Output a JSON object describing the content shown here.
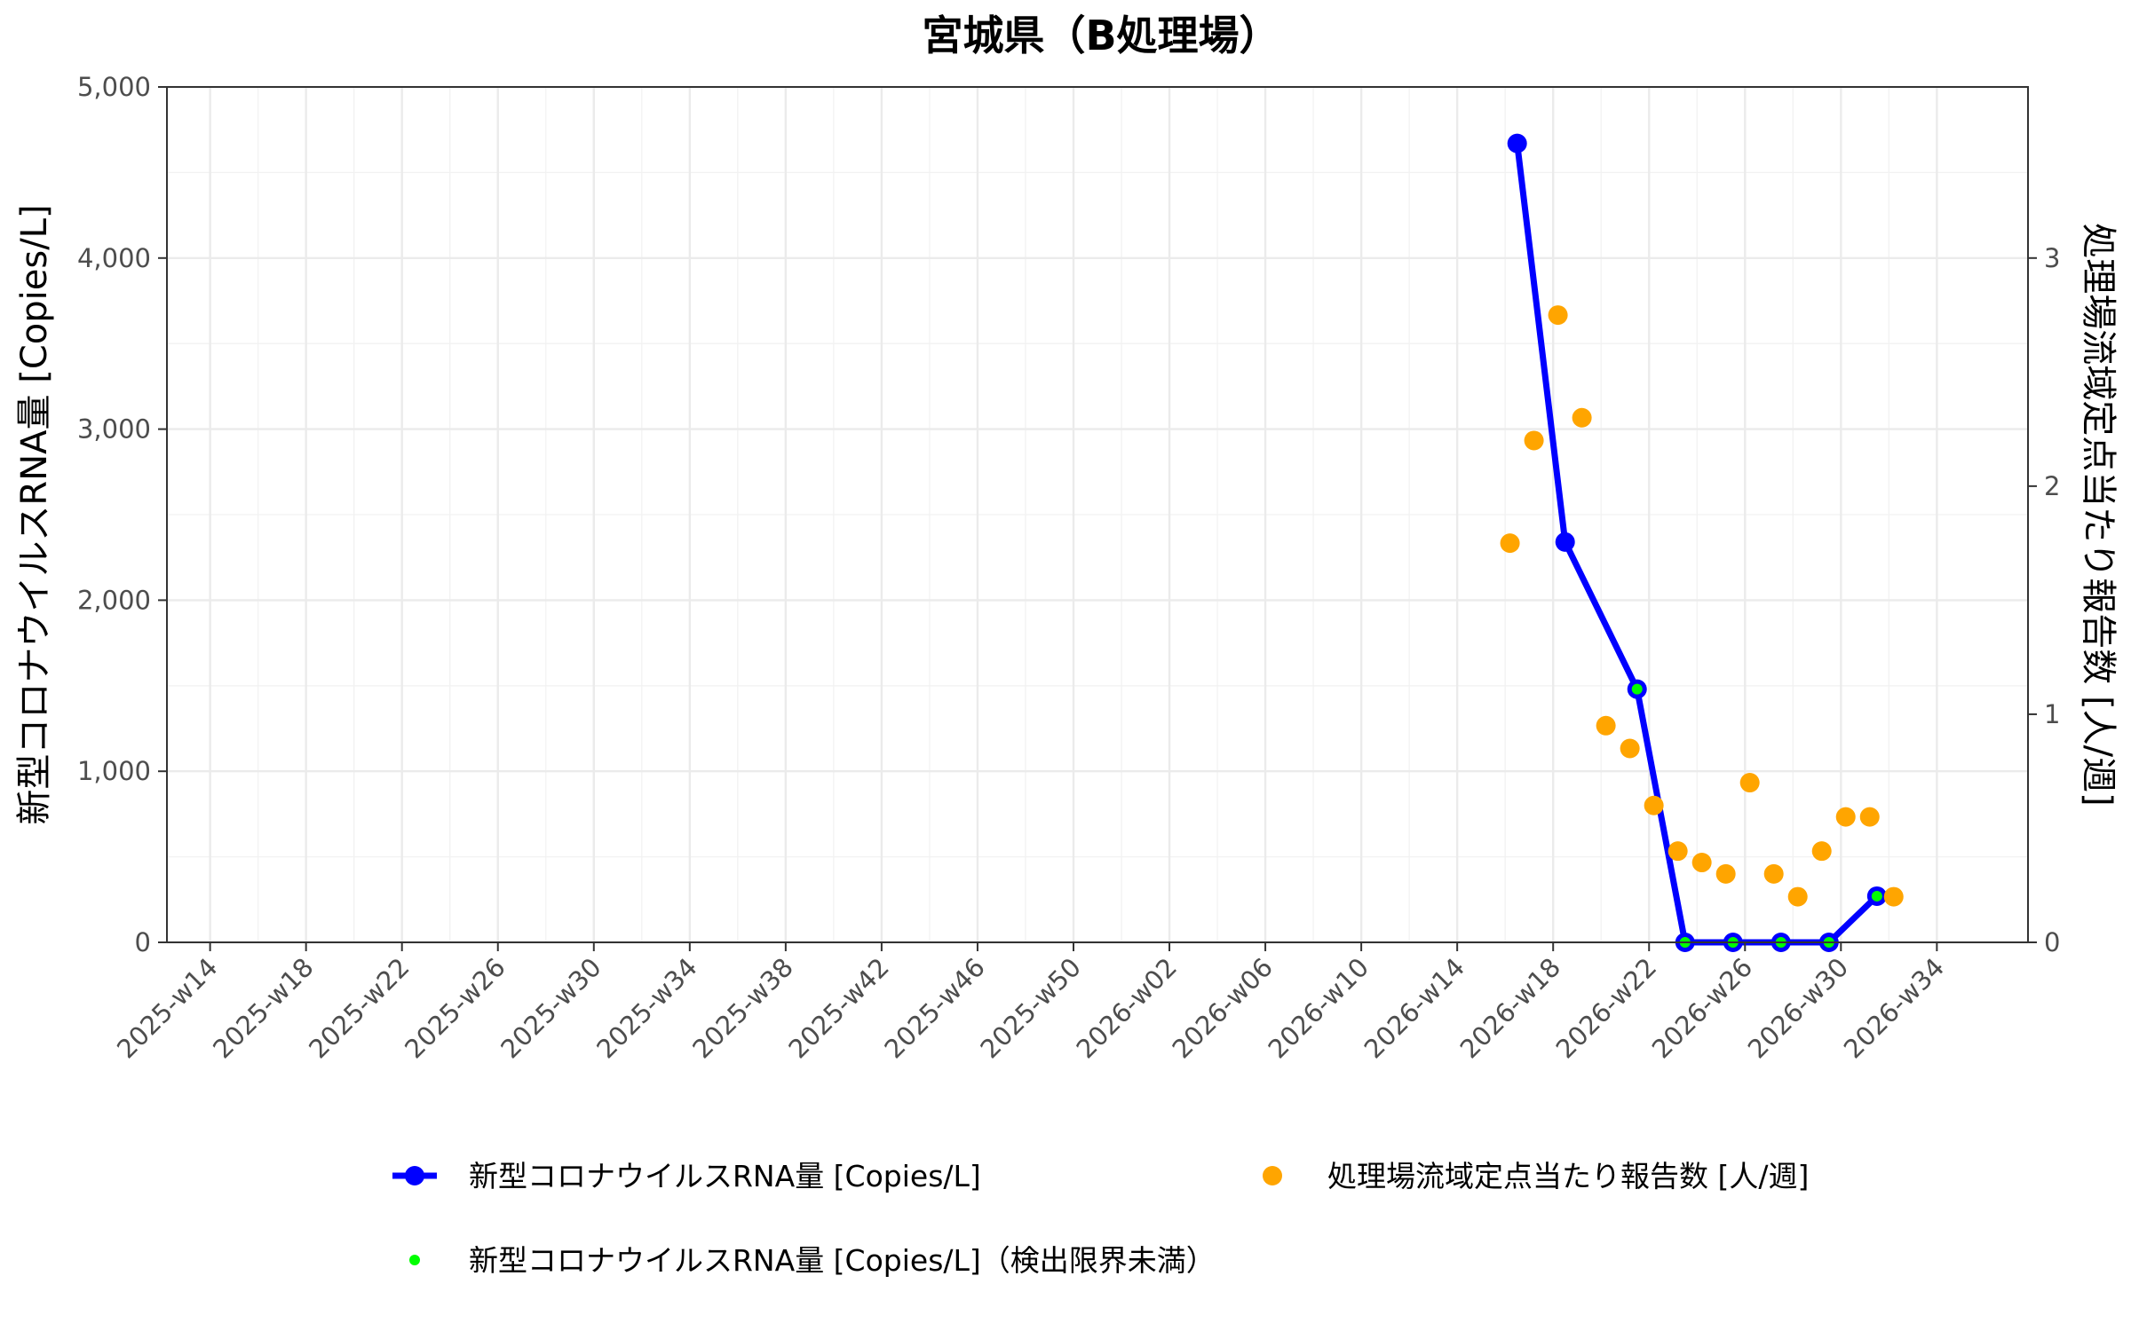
{
  "chart_data": {
    "type": "line",
    "title": "宮城県（B処理場）",
    "ylabel": "新型コロナウイルスRNA量 [Copies/L]",
    "y2label": "処理場流域定点当たり報告数 [人/週]",
    "xlabel": "",
    "ylim": [
      0,
      5000
    ],
    "y2lim": [
      0,
      3.75
    ],
    "xlim": [
      -9.8,
      67.8
    ],
    "yticks": [
      "0",
      "1,000",
      "2,000",
      "3,000",
      "4,000",
      "5,000"
    ],
    "yticks_values": [
      0,
      1000,
      2000,
      3000,
      4000,
      5000
    ],
    "y2ticks": [
      "0",
      "1",
      "2",
      "3"
    ],
    "y2ticks_values": [
      0,
      1,
      2,
      3
    ],
    "xticks": [
      "2025-w14",
      "2025-w18",
      "2025-w22",
      "2025-w26",
      "2025-w30",
      "2025-w34",
      "2025-w38",
      "2025-w42",
      "2025-w46",
      "2025-w50",
      "2026-w02",
      "2026-w06",
      "2026-w10",
      "2026-w14",
      "2026-w18",
      "2026-w22",
      "2026-w26",
      "2026-w30",
      "2026-w34"
    ],
    "xticks_values": [
      -8,
      -4,
      0,
      4,
      8,
      12,
      16,
      20,
      24,
      28,
      32,
      36,
      40,
      44,
      48,
      52,
      56,
      60,
      64
    ],
    "x_unit": "weeks relative to 2025-w22",
    "grid": true,
    "legend_position": "bottom",
    "colors": {
      "rna": "#0000ff",
      "reports": "#ffa500",
      "below_limit": "#00ff00"
    },
    "series": [
      {
        "name": "新型コロナウイルスRNA量 [Copies/L]",
        "axis": "left",
        "style": "line+points",
        "x": [
          46.5,
          48.5,
          51.5,
          53.5,
          55.5,
          57.5,
          59.5,
          61.5
        ],
        "values": [
          4670,
          2340,
          1480,
          0,
          0,
          0,
          0,
          270
        ]
      },
      {
        "name": "新型コロナウイルスRNA量 [Copies/L]（検出限界未満）",
        "axis": "left",
        "style": "points",
        "x": [
          51.5,
          53.5,
          55.5,
          57.5,
          59.5,
          61.5
        ],
        "values": [
          1480,
          0,
          0,
          0,
          0,
          270
        ]
      },
      {
        "name": "処理場流域定点当たり報告数 [人/週]",
        "axis": "right",
        "style": "points",
        "x": [
          46.2,
          47.2,
          48.2,
          49.2,
          50.2,
          51.2,
          52.2,
          53.2,
          54.2,
          55.2,
          56.2,
          57.2,
          58.2,
          59.2,
          60.2,
          61.2,
          62.2
        ],
        "values": [
          1.75,
          2.2,
          2.75,
          2.3,
          0.95,
          0.85,
          0.6,
          0.4,
          0.35,
          0.3,
          0.7,
          0.3,
          0.2,
          0.4,
          0.55,
          0.55,
          0.2
        ]
      }
    ]
  }
}
